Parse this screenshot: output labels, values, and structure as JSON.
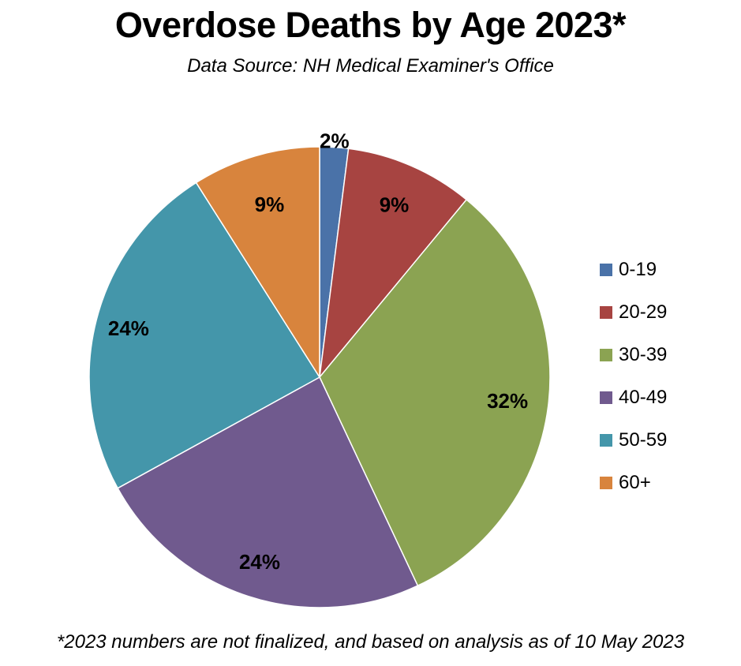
{
  "chart_data": {
    "type": "pie",
    "title": "Overdose Deaths by Age 2023*",
    "subtitle": "Data Source: NH Medical Examiner's Office",
    "footnote": "*2023 numbers are not finalized, and based on analysis as of 10 May 2023",
    "categories": [
      "0-19",
      "20-29",
      "30-39",
      "40-49",
      "50-59",
      "60+"
    ],
    "values": [
      2,
      9,
      32,
      24,
      24,
      9
    ],
    "data_labels": [
      "2%",
      "9%",
      "32%",
      "24%",
      "24%",
      "9%"
    ],
    "colors": [
      "#4a72a8",
      "#a74441",
      "#8ba352",
      "#705a8e",
      "#4496aa",
      "#d8843d"
    ],
    "legend_placement": "right",
    "start_angle": "12 o'clock, clockwise"
  }
}
